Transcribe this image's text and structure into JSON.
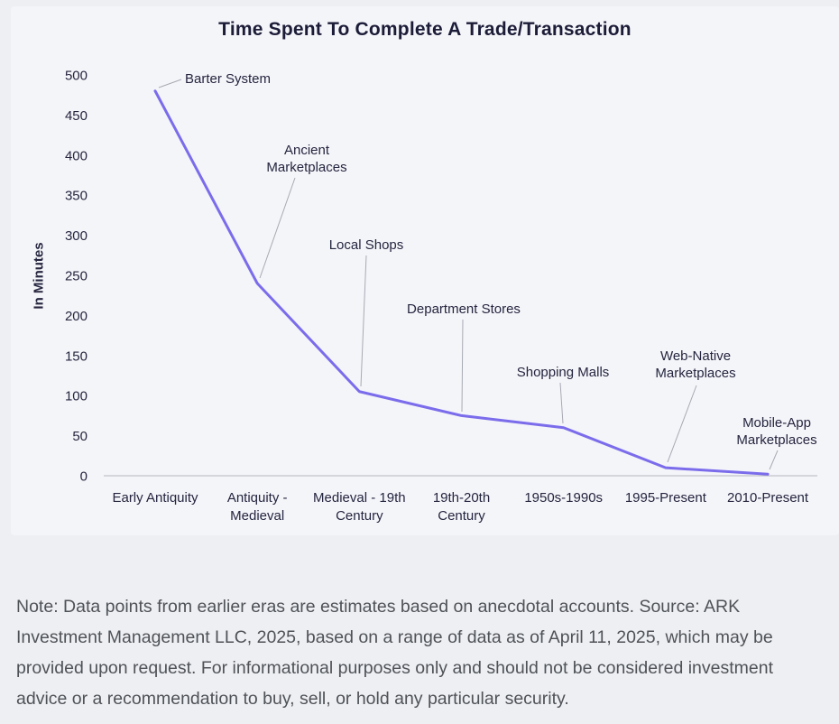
{
  "page": {
    "background_color": "#edeff3",
    "card_background_color": "#f4f5f9"
  },
  "chart_data": {
    "type": "line",
    "title": "Time Spent To Complete A Trade/Transaction",
    "xlabel": "",
    "ylabel": "In Minutes",
    "ylim": [
      0,
      500
    ],
    "ytick_step": 50,
    "grid": false,
    "legend": "none",
    "line_color": "#7b6ceb",
    "categories": [
      "Early Antiquity",
      "Antiquity - Medieval",
      "Medieval - 19th Century",
      "19th-20th Century",
      "1950s-1990s",
      "1995-Present",
      "2010-Present"
    ],
    "series": [
      {
        "name": "Time spent to complete a trade/transaction (minutes)",
        "values": [
          480,
          240,
          105,
          75,
          60,
          10,
          2
        ]
      }
    ],
    "point_labels": [
      "Barter System",
      "Ancient Marketplaces",
      "Local Shops",
      "Department Stores",
      "Shopping Malls",
      "Web-Native Marketplaces",
      "Mobile-App Marketplaces"
    ]
  },
  "note": {
    "text": "Note: Data points from earlier eras are estimates based on anecdotal accounts. Source: ARK Investment Management LLC, 2025, based on a range of data as of April 11, 2025, which may be provided upon request. For informational purposes only and should not be considered investment advice or a recommendation to buy, sell, or hold any particular security."
  }
}
